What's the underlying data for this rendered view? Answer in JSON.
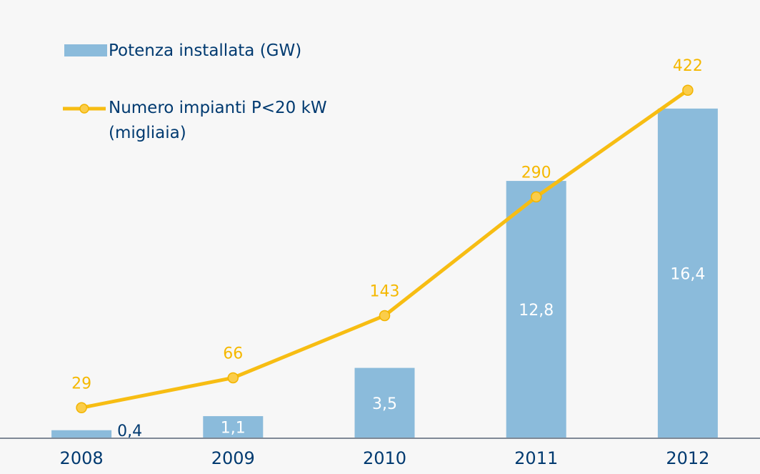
{
  "chart_data": {
    "type": "bar-line",
    "categories": [
      "2008",
      "2009",
      "2010",
      "2011",
      "2012"
    ],
    "series": [
      {
        "name": "Potenza installata (GW)",
        "type": "bar",
        "color": "#8bbbdb",
        "values": [
          0.4,
          1.1,
          3.5,
          12.8,
          16.4
        ],
        "value_labels": [
          "0,4",
          "1,1",
          "3,5",
          "12,8",
          "16,4"
        ]
      },
      {
        "name": "Numero impianti P<20 kW\n(migliaia)",
        "type": "line",
        "axis": "y2",
        "color": "#f7bd13",
        "values": [
          29,
          66,
          143,
          290,
          422
        ]
      }
    ],
    "ylim": [
      0,
      21.8
    ],
    "y2lim": [
      -8.8,
      533.7
    ],
    "legend": "top-left"
  }
}
